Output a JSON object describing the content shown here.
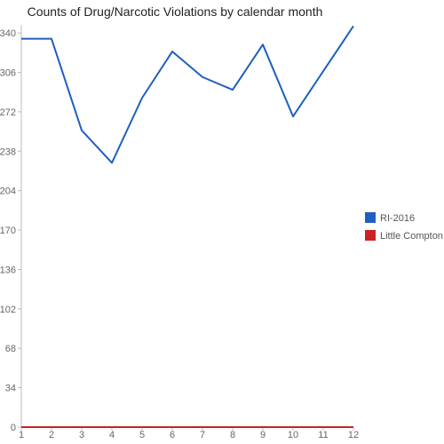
{
  "chart_data": {
    "type": "line",
    "title": "Counts of Drug/Narcotic Violations by calendar month",
    "xlabel": "",
    "ylabel": "",
    "x": [
      1,
      2,
      3,
      4,
      5,
      6,
      7,
      8,
      9,
      10,
      11,
      12
    ],
    "ylim": [
      0,
      347
    ],
    "yticks": [
      0,
      34,
      68,
      102,
      136,
      170,
      204,
      238,
      272,
      306,
      340
    ],
    "grid": false,
    "legend_position": "right",
    "series": [
      {
        "name": "RI-2016",
        "color": "#1f5fbf",
        "values": [
          335,
          335,
          256,
          228,
          284,
          324,
          302,
          291,
          330,
          268,
          307,
          346
        ]
      },
      {
        "name": "Little Compton",
        "color": "#cc2222",
        "values": [
          0,
          0,
          0,
          0,
          0,
          0,
          0,
          0,
          0,
          0,
          0,
          0
        ]
      }
    ]
  }
}
